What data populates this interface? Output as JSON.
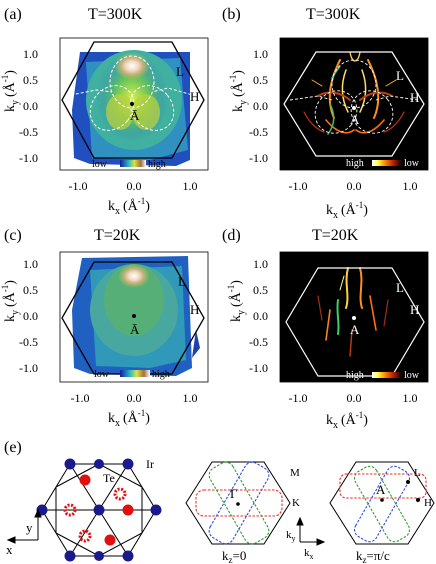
{
  "panels": [
    {
      "id": "a",
      "label": "(a)",
      "title": "T=300K",
      "ylabel": "k",
      "ylabel_sub": "y",
      "ylabel_unit": "(Å",
      "xlabel": "k",
      "xlabel_sub": "x",
      "xlabel_unit": "(Å",
      "y_ticks": [
        "1.0",
        "0.5",
        "0.0",
        "-0.5",
        "-1.0"
      ],
      "x_ticks": [
        "-1.0",
        "0.0",
        "1.0"
      ],
      "points": [
        "L",
        "H",
        "Ā"
      ],
      "colorbar_left": "low",
      "colorbar_right": "high"
    },
    {
      "id": "b",
      "label": "(b)",
      "title": "T=300K",
      "ylabel": "k",
      "ylabel_sub": "y",
      "ylabel_unit": "(Å",
      "xlabel": "k",
      "xlabel_sub": "x",
      "xlabel_unit": "(Å",
      "y_ticks": [
        "1.0",
        "0.5",
        "0.0",
        "-0.5",
        "-1.0"
      ],
      "x_ticks": [
        "-1.0",
        "0.0",
        "1.0"
      ],
      "points": [
        "L",
        "H",
        "A"
      ],
      "colorbar_left": "high",
      "colorbar_right": "low"
    },
    {
      "id": "c",
      "label": "(c)",
      "title": "T=20K",
      "ylabel": "k",
      "ylabel_sub": "y",
      "ylabel_unit": "(Å",
      "xlabel": "k",
      "xlabel_sub": "x",
      "xlabel_unit": "(Å",
      "y_ticks": [
        "1.0",
        "0.5",
        "0.0",
        "-0.5",
        "-1.0"
      ],
      "x_ticks": [
        "-1.0",
        "0.0",
        "1.0"
      ],
      "points": [
        "L",
        "H",
        "Ā"
      ],
      "colorbar_left": "low",
      "colorbar_right": "high"
    },
    {
      "id": "d",
      "label": "(d)",
      "title": "T=20K",
      "ylabel": "k",
      "ylabel_sub": "y",
      "ylabel_unit": "(Å",
      "xlabel": "k",
      "xlabel_sub": "x",
      "xlabel_unit": "(Å",
      "y_ticks": [
        "1.0",
        "0.5",
        "0.0",
        "-0.5",
        "-1.0"
      ],
      "x_ticks": [
        "-1.0",
        "0.0",
        "1.0"
      ],
      "points": [
        "L",
        "H",
        "A"
      ],
      "colorbar_left": "high",
      "colorbar_right": "low"
    }
  ],
  "panel_e": {
    "label": "(e)",
    "lattice_labels": {
      "ir": "Ir",
      "te": "Te"
    },
    "axes": {
      "y": "y",
      "x": "x"
    },
    "bz0": {
      "gamma": "Γ",
      "m": "M",
      "k": "K",
      "caption": "k",
      "caption_sub": "z",
      "caption_rest": "=0"
    },
    "kaxes": {
      "y": "k",
      "y_sub": "y",
      "x": "k",
      "x_sub": "x"
    },
    "bz1": {
      "a": "A",
      "l": "L",
      "h": "H",
      "caption": "k",
      "caption_sub": "z",
      "caption_rest": "=π/c"
    }
  },
  "colors": {
    "hexagon_dark": "#000000",
    "hexagon_light": "#ffffff",
    "ir_atom": "#1a1a8c",
    "te_atom": "#e01010",
    "pocket_red": "#e03030",
    "pocket_green": "#30a030",
    "pocket_blue": "#3050d0"
  }
}
